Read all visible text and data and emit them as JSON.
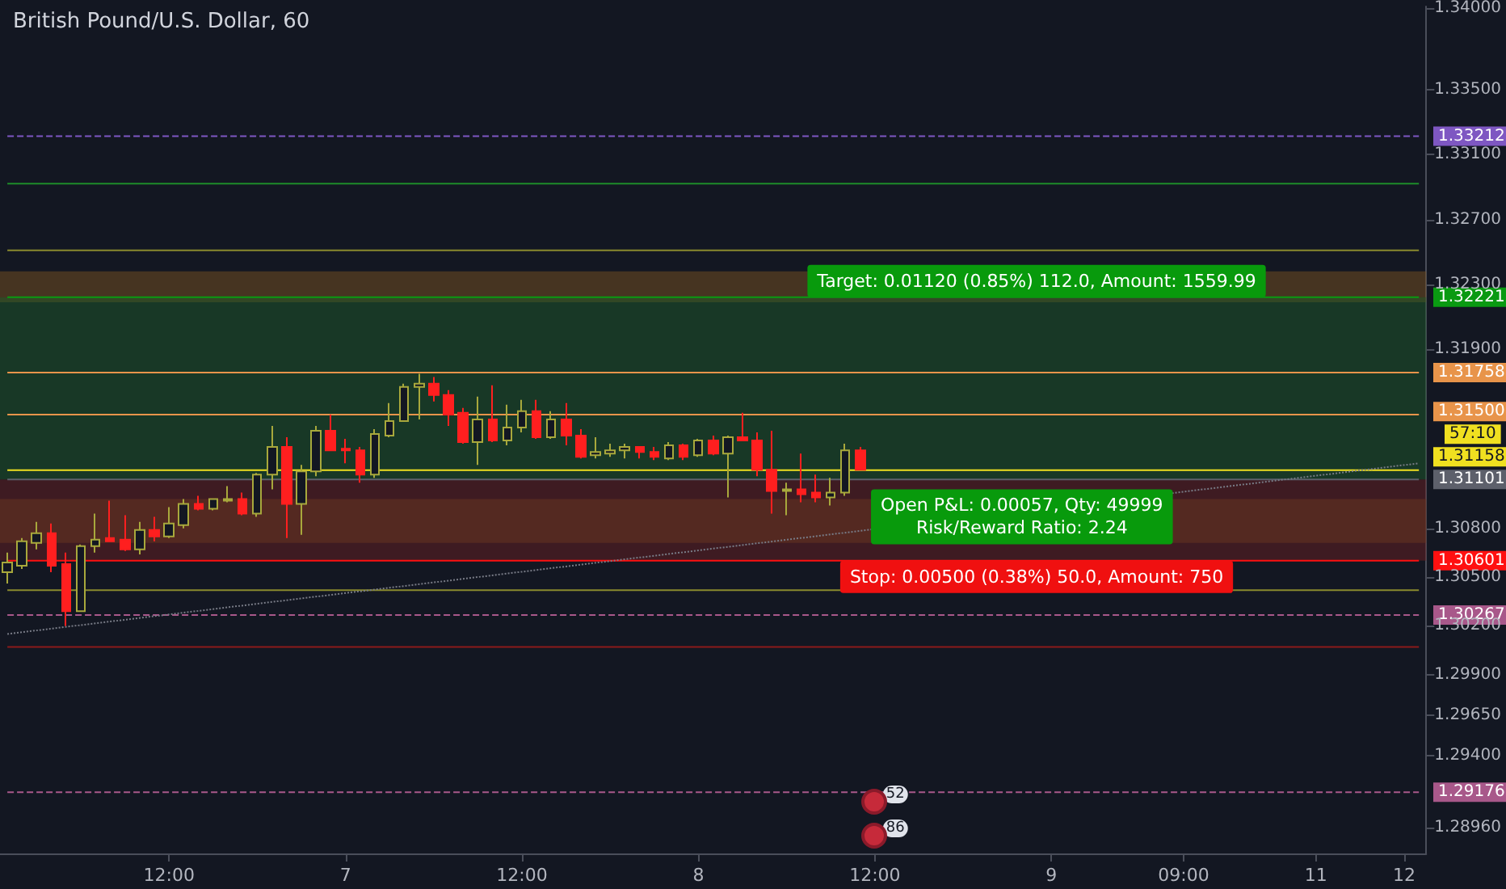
{
  "chart_data": {
    "type": "candlestick",
    "title": "British Pound/U.S. Dollar, 60",
    "categories": [
      null,
      null,
      null,
      null,
      null,
      null,
      null,
      null,
      null,
      null,
      null,
      "12:00",
      null,
      null,
      null,
      null,
      null,
      null,
      null,
      null,
      null,
      null,
      null,
      "7",
      null,
      null,
      null,
      null,
      null,
      null,
      null,
      null,
      null,
      null,
      null,
      "12:00",
      null,
      null,
      null,
      null,
      null,
      null,
      null,
      null,
      null,
      null,
      null,
      "8",
      null,
      null,
      null,
      null,
      null,
      null,
      null,
      null,
      null,
      null,
      null,
      "12:00",
      null,
      null,
      null,
      null,
      null,
      null,
      null,
      null,
      null,
      null,
      null,
      "9",
      null,
      null,
      null,
      null,
      null,
      null,
      null,
      null,
      "09:00",
      null,
      null,
      null,
      null,
      null,
      null,
      null,
      null,
      "11",
      null,
      null,
      null,
      null,
      null,
      "12",
      null
    ],
    "ohlc": [
      [
        1.3053,
        1.3065,
        1.3046,
        1.3059
      ],
      [
        1.3057,
        1.3074,
        1.3055,
        1.3072
      ],
      [
        1.3071,
        1.3084,
        1.3067,
        1.3077
      ],
      [
        1.3077,
        1.3083,
        1.3053,
        1.3057
      ],
      [
        1.3058,
        1.3065,
        1.302,
        1.3029
      ],
      [
        1.3029,
        1.307,
        1.3029,
        1.3069
      ],
      [
        1.3069,
        1.3089,
        1.3065,
        1.3073
      ],
      [
        1.3074,
        1.3097,
        1.3072,
        1.3072
      ],
      [
        1.3073,
        1.3088,
        1.3066,
        1.3067
      ],
      [
        1.3067,
        1.3084,
        1.3064,
        1.3079
      ],
      [
        1.3079,
        1.3087,
        1.3072,
        1.3075
      ],
      [
        1.3075,
        1.3093,
        1.3074,
        1.3083
      ],
      [
        1.3082,
        1.3098,
        1.308,
        1.3095
      ],
      [
        1.3095,
        1.31,
        1.3091,
        1.3092
      ],
      [
        1.3092,
        1.3098,
        1.3091,
        1.3098
      ],
      [
        1.3097,
        1.3106,
        1.3096,
        1.3098
      ],
      [
        1.3098,
        1.3102,
        1.3088,
        1.3089
      ],
      [
        1.3089,
        1.3114,
        1.3087,
        1.3113
      ],
      [
        1.3113,
        1.3143,
        1.3104,
        1.313
      ],
      [
        1.313,
        1.3136,
        1.3074,
        1.3095
      ],
      [
        1.3095,
        1.3119,
        1.3076,
        1.3115
      ],
      [
        1.3115,
        1.3143,
        1.3112,
        1.314
      ],
      [
        1.314,
        1.315,
        1.3128,
        1.3128
      ],
      [
        1.3129,
        1.3135,
        1.312,
        1.3128
      ],
      [
        1.3128,
        1.313,
        1.3108,
        1.3113
      ],
      [
        1.3113,
        1.3141,
        1.3111,
        1.3138
      ],
      [
        1.3137,
        1.3157,
        1.3136,
        1.3146
      ],
      [
        1.3146,
        1.3169,
        1.3146,
        1.3167
      ],
      [
        1.3167,
        1.3175,
        1.3147,
        1.3169
      ],
      [
        1.3169,
        1.3173,
        1.3158,
        1.3162
      ],
      [
        1.3162,
        1.3165,
        1.3143,
        1.315
      ],
      [
        1.3151,
        1.3154,
        1.3132,
        1.3133
      ],
      [
        1.3133,
        1.3161,
        1.3119,
        1.3147
      ],
      [
        1.3147,
        1.3168,
        1.3133,
        1.3134
      ],
      [
        1.3134,
        1.3156,
        1.3131,
        1.3142
      ],
      [
        1.3142,
        1.3159,
        1.3139,
        1.3152
      ],
      [
        1.3152,
        1.3159,
        1.3135,
        1.3136
      ],
      [
        1.3136,
        1.3152,
        1.3135,
        1.3147
      ],
      [
        1.3147,
        1.3157,
        1.3131,
        1.3137
      ],
      [
        1.3137,
        1.3141,
        1.3123,
        1.3124
      ],
      [
        1.3125,
        1.3136,
        1.3123,
        1.3127
      ],
      [
        1.3126,
        1.3132,
        1.3124,
        1.3128
      ],
      [
        1.3128,
        1.3132,
        1.3123,
        1.313
      ],
      [
        1.313,
        1.313,
        1.3123,
        1.3127
      ],
      [
        1.3127,
        1.313,
        1.3122,
        1.3124
      ],
      [
        1.3123,
        1.3133,
        1.3122,
        1.3131
      ],
      [
        1.3131,
        1.3132,
        1.3122,
        1.3124
      ],
      [
        1.3125,
        1.3135,
        1.3124,
        1.3134
      ],
      [
        1.3134,
        1.3137,
        1.3125,
        1.3126
      ],
      [
        1.3126,
        1.3137,
        1.3099,
        1.3136
      ],
      [
        1.3136,
        1.3151,
        1.3134,
        1.3134
      ],
      [
        1.3134,
        1.3139,
        1.3112,
        1.3116
      ],
      [
        1.3116,
        1.314,
        1.3089,
        1.3103
      ],
      [
        1.3103,
        1.3108,
        1.3088,
        1.3104
      ],
      [
        1.3104,
        1.3126,
        1.3096,
        1.3101
      ],
      [
        1.3102,
        1.3113,
        1.3096,
        1.3099
      ],
      [
        1.3099,
        1.3111,
        1.3094,
        1.3102
      ],
      [
        1.3102,
        1.3132,
        1.31,
        1.3128
      ],
      [
        1.3128,
        1.313,
        1.3116,
        1.3116
      ],
      null,
      null,
      null,
      null,
      null,
      null,
      null,
      null,
      null,
      null,
      null,
      null,
      null,
      null,
      null,
      null,
      null,
      null,
      null,
      null,
      null,
      null,
      null,
      null,
      null,
      null,
      null,
      null,
      null,
      null,
      null,
      null,
      null,
      null,
      null,
      null,
      null,
      null
    ],
    "colors": [
      "#a8a83c",
      "#a8a83c",
      "#a8a83c",
      "#ff1f1f",
      "#ff1f1f",
      "#a8a83c",
      "#a8a83c",
      "#ff1f1f",
      "#ff1f1f",
      "#a8a83c",
      "#ff1f1f",
      "#a8a83c",
      "#a8a83c",
      "#ff1f1f",
      "#a8a83c",
      "#a8a83c",
      "#ff1f1f",
      "#a8a83c",
      "#a8a83c",
      "#ff1f1f",
      "#a8a83c",
      "#a8a83c",
      "#ff1f1f",
      "#ff1f1f",
      "#ff1f1f",
      "#a8a83c",
      "#a8a83c",
      "#a8a83c",
      "#a8a83c",
      "#ff1f1f",
      "#ff1f1f",
      "#ff1f1f",
      "#a8a83c",
      "#ff1f1f",
      "#a8a83c",
      "#a8a83c",
      "#ff1f1f",
      "#a8a83c",
      "#ff1f1f",
      "#ff1f1f",
      "#a8a83c",
      "#a8a83c",
      "#a8a83c",
      "#ff1f1f",
      "#ff1f1f",
      "#a8a83c",
      "#ff1f1f",
      "#a8a83c",
      "#ff1f1f",
      "#a8a83c",
      "#ff1f1f",
      "#ff1f1f",
      "#ff1f1f",
      "#a8a83c",
      "#ff1f1f",
      "#ff1f1f",
      "#a8a83c",
      "#a8a83c",
      "#ff1f1f",
      null,
      null,
      null,
      null,
      null,
      null,
      null,
      null,
      null,
      null,
      null,
      null,
      null,
      null,
      null,
      null,
      null,
      null,
      null,
      null,
      null,
      null,
      null,
      null,
      null,
      null,
      null,
      null,
      null,
      null,
      null,
      null,
      null,
      null,
      null,
      null,
      null,
      null
    ],
    "series": [
      {
        "type": "line",
        "values": [
          1.3015,
          null,
          null,
          null,
          null,
          null,
          null,
          null,
          null,
          null,
          null,
          null,
          null,
          null,
          null,
          null,
          null,
          null,
          null,
          null,
          null,
          null,
          null,
          null,
          null,
          null,
          null,
          null,
          null,
          null,
          null,
          null,
          null,
          null,
          null,
          null,
          null,
          null,
          null,
          null,
          null,
          null,
          null,
          null,
          null,
          null,
          null,
          null,
          null,
          null,
          null,
          null,
          null,
          null,
          null,
          null,
          null,
          null,
          null,
          null,
          null,
          null,
          null,
          null,
          null,
          null,
          null,
          null,
          null,
          null,
          null,
          null,
          null,
          null,
          null,
          null,
          null,
          null,
          null,
          null,
          null,
          null,
          null,
          null,
          null,
          null,
          null,
          null,
          null,
          null,
          null,
          null,
          null,
          null,
          null,
          null,
          1.312
        ],
        "color": "#787b86",
        "line_style": "dotted",
        "marker": "none"
      }
    ],
    "ylim": [
      1.288,
      1.3401
    ],
    "yticks": [
      {
        "value": 1.34,
        "label": "1.34000"
      },
      {
        "value": 1.335,
        "label": "1.33500"
      },
      {
        "value": 1.331,
        "label": "1.33100"
      },
      {
        "value": 1.327,
        "label": "1.32700"
      },
      {
        "value": 1.323,
        "label": "1.32300"
      },
      {
        "value": 1.319,
        "label": "1.31900"
      },
      {
        "value": 1.308,
        "label": "1.30800"
      },
      {
        "value": 1.305,
        "label": "1.30500"
      },
      {
        "value": 1.302,
        "label": "1.30200"
      },
      {
        "value": 1.299,
        "label": "1.29900"
      },
      {
        "value": 1.2965,
        "label": "1.29650"
      },
      {
        "value": 1.294,
        "label": "1.29400"
      },
      {
        "value": 1.2896,
        "label": "1.28960"
      }
    ],
    "ref_lines": [
      {
        "axis": "y",
        "value": 1.33212,
        "label": "1.33212",
        "color": "#7e57c2",
        "line_style": "dashed"
      },
      {
        "axis": "y",
        "value": 1.3292,
        "color": "#1e8c2a"
      },
      {
        "axis": "y",
        "value": 1.3251,
        "color": "#8a8a2e"
      },
      {
        "axis": "y",
        "value": 1.32221,
        "label": "1.32221",
        "color": "#0a9a12"
      },
      {
        "axis": "y",
        "value": 1.31758,
        "label": "1.31758",
        "color": "#e8944a"
      },
      {
        "axis": "y",
        "value": 1.315,
        "label": "1.31500",
        "color": "#e8944a"
      },
      {
        "axis": "y",
        "value": 1.31158,
        "label": "1.31158",
        "color": "#f0e020"
      },
      {
        "axis": "y",
        "value": 1.31101,
        "label": "1.31101",
        "color": "#5d606b"
      },
      {
        "axis": "y",
        "value": 1.30601,
        "label": "1.30601",
        "color": "#ff1010"
      },
      {
        "axis": "y",
        "value": 1.3042,
        "color": "#8a8a2e"
      },
      {
        "axis": "y",
        "value": 1.30267,
        "label": "1.30267",
        "color": "#a8588a",
        "line_style": "dashed"
      },
      {
        "axis": "y",
        "value": 1.3007,
        "color": "#8b1a1a"
      },
      {
        "axis": "y",
        "value": 1.29176,
        "label": "1.29176",
        "color": "#a8588a",
        "line_style": "dashed"
      }
    ],
    "bands": [
      {
        "axis": "y",
        "from": 1.3219,
        "to": 1.3238,
        "color": "#7a5220"
      },
      {
        "axis": "y",
        "from": 1.3071,
        "to": 1.3098,
        "color": "#6a4d20"
      },
      {
        "axis": "y",
        "from": 1.31101,
        "to": 1.32221,
        "color": "#1d5a2a"
      },
      {
        "axis": "y",
        "from": 1.30601,
        "to": 1.31101,
        "color": "#6a1f22"
      }
    ],
    "annotations": [
      "Target: 0.01120 (0.85%) 112.0, Amount: 1559.99",
      "Open P&L: 0.00057, Qty: 49999\nRisk/Reward Ratio: 2.24",
      "Stop: 0.00500 (0.38%) 50.0, Amount: 750",
      "57:10",
      "52",
      "86"
    ]
  }
}
